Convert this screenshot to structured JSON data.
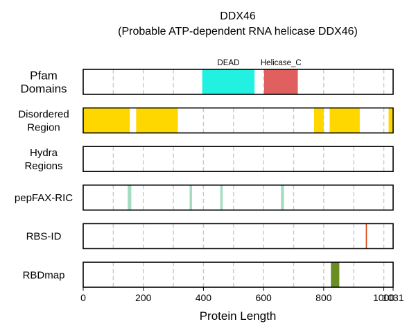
{
  "chart_data": {
    "type": "protein-feature-tracks",
    "title": "DDX46",
    "subtitle": "(Probable ATP-dependent RNA helicase DDX46)",
    "xlabel": "Protein Length",
    "xlim": [
      0,
      1031
    ],
    "x_ticks": [
      0,
      200,
      400,
      600,
      800,
      1000,
      1031
    ],
    "grid_lines_x": [
      100,
      200,
      300,
      400,
      500,
      600,
      700,
      800,
      900,
      1000
    ],
    "grid": true,
    "tracks": [
      {
        "name": "Pfam\nDomains",
        "features": [
          {
            "start": 396,
            "end": 570,
            "color": "#22f0e0",
            "label": "DEAD"
          },
          {
            "start": 602,
            "end": 714,
            "color": "#e05f5f",
            "label": "Helicase_C"
          }
        ]
      },
      {
        "name": "Disordered\nRegion",
        "features": [
          {
            "start": 1,
            "end": 155,
            "color": "#ffd700"
          },
          {
            "start": 176,
            "end": 315,
            "color": "#ffd700"
          },
          {
            "start": 768,
            "end": 800,
            "color": "#ffd700"
          },
          {
            "start": 820,
            "end": 920,
            "color": "#ffd700"
          },
          {
            "start": 1016,
            "end": 1031,
            "color": "#ffd700"
          }
        ]
      },
      {
        "name": "Hydra\nRegions",
        "features": []
      },
      {
        "name": "pepFAX-RIC",
        "features": [
          {
            "start": 148,
            "end": 160,
            "color": "#a5dcc0"
          },
          {
            "start": 354,
            "end": 362,
            "color": "#a5dcc0"
          },
          {
            "start": 456,
            "end": 464,
            "color": "#a5dcc0"
          },
          {
            "start": 658,
            "end": 668,
            "color": "#a5dcc0"
          }
        ]
      },
      {
        "name": "RBS-ID",
        "features": [
          {
            "start": 940,
            "end": 944,
            "color": "#e0501c"
          }
        ]
      },
      {
        "name": "RBDmap",
        "features": [
          {
            "start": 824,
            "end": 852,
            "color": "#6b8e23"
          }
        ]
      }
    ]
  }
}
